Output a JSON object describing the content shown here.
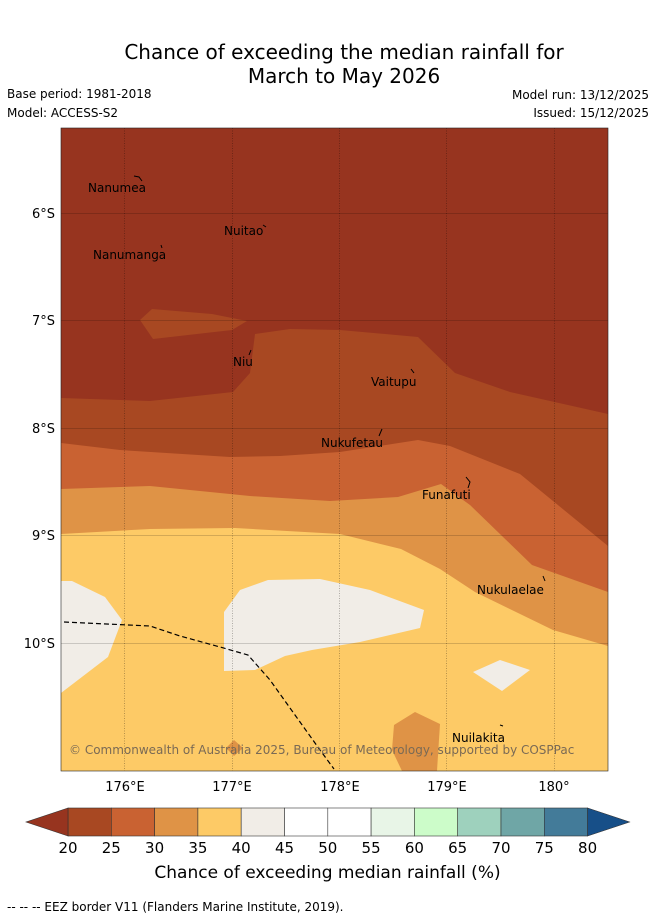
{
  "header": {
    "title_line1": "Chance of exceeding the median rainfall for",
    "title_line2": "March to May 2026",
    "base_period": "Base period: 1981-2018",
    "model": "Model: ACCESS-S2",
    "model_run": "Model run: 13/12/2025",
    "issued": "Issued: 15/12/2025"
  },
  "map": {
    "lat_labels": [
      "6°S",
      "7°S",
      "8°S",
      "9°S",
      "10°S"
    ],
    "lon_labels": [
      "176°E",
      "177°E",
      "178°E",
      "179°E",
      "180°"
    ],
    "places": {
      "nanumea": "Nanumea",
      "nuitao": "Nuitao",
      "nanumanga": "Nanumanga",
      "niu": "Niu",
      "vaitupu": "Vaitupu",
      "nukufetau": "Nukufetau",
      "funafuti": "Funafuti",
      "nukulaelae": "Nukulaelae",
      "nuilakita": "Nuilakita"
    },
    "copyright": "© Commonwealth of Australia 2025, Bureau of Meteorology, supported by COSPPac"
  },
  "colorbar": {
    "ticks": [
      "20",
      "25",
      "30",
      "35",
      "40",
      "45",
      "50",
      "55",
      "60",
      "65",
      "70",
      "75",
      "80"
    ],
    "colors": [
      "#a84822",
      "#c96232",
      "#df9346",
      "#fdca66",
      "#f1ede7",
      "#ffffff",
      "#ffffff",
      "#e8f5e7",
      "#ccfcc9",
      "#9ed1bd",
      "#6fa6a6",
      "#437b99"
    ],
    "under_color": "#97341f",
    "over_color": "#174f88",
    "label": "Chance of exceeding median rainfall (%)"
  },
  "footer": {
    "legend": "--  --  -- EEZ border V11 (Flanders Marine Institute, 2019)."
  }
}
